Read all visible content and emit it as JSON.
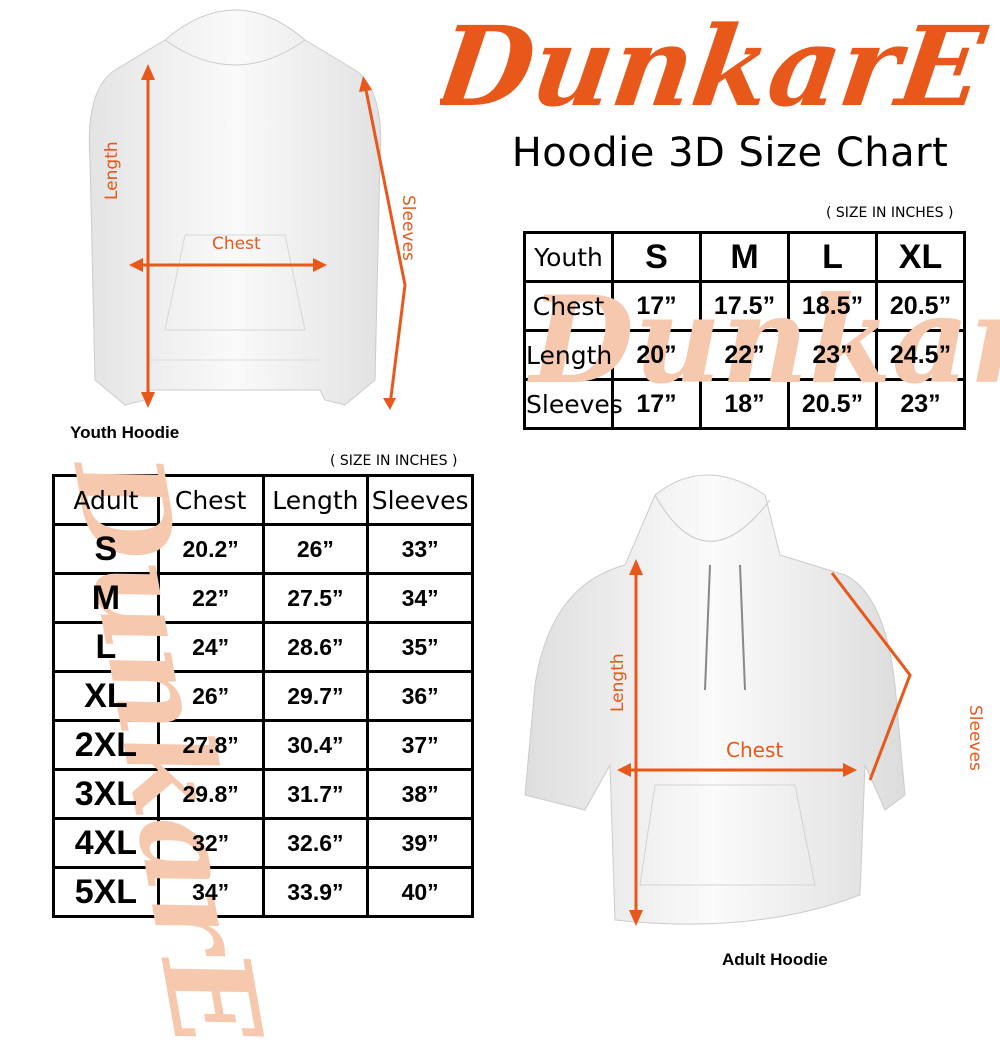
{
  "brand": {
    "logo_text": "DunkarE",
    "color": "#e8581a"
  },
  "title": "Hoodie 3D Size Chart",
  "youth": {
    "caption": "Youth Hoodie",
    "unit_note": "( SIZE IN INCHES )",
    "labels": {
      "length": "Length",
      "chest": "Chest",
      "sleeves": "Sleeves"
    },
    "table": {
      "header": [
        "Youth",
        "S",
        "M",
        "L",
        "XL"
      ],
      "rows": [
        [
          "Chest",
          "17”",
          "17.5”",
          "18.5”",
          "20.5”"
        ],
        [
          "Length",
          "20”",
          "22”",
          "23”",
          "24.5”"
        ],
        [
          "Sleeves",
          "17”",
          "18”",
          "20.5”",
          "23”"
        ]
      ]
    }
  },
  "adult": {
    "caption": "Adult Hoodie",
    "unit_note": "( SIZE IN INCHES )",
    "labels": {
      "length": "Length",
      "chest": "Chest",
      "sleeves": "Sleeves"
    },
    "table": {
      "header": [
        "Adult",
        "Chest",
        "Length",
        "Sleeves"
      ],
      "rows": [
        [
          "S",
          "20.2”",
          "26”",
          "33”"
        ],
        [
          "M",
          "22”",
          "27.5”",
          "34”"
        ],
        [
          "L",
          "24”",
          "28.6”",
          "35”"
        ],
        [
          "XL",
          "26”",
          "29.7”",
          "36”"
        ],
        [
          "2XL",
          "27.8”",
          "30.4”",
          "37”"
        ],
        [
          "3XL",
          "29.8”",
          "31.7”",
          "38”"
        ],
        [
          "4XL",
          "32”",
          "32.6”",
          "39”"
        ],
        [
          "5XL",
          "34”",
          "33.9”",
          "40”"
        ]
      ]
    }
  }
}
